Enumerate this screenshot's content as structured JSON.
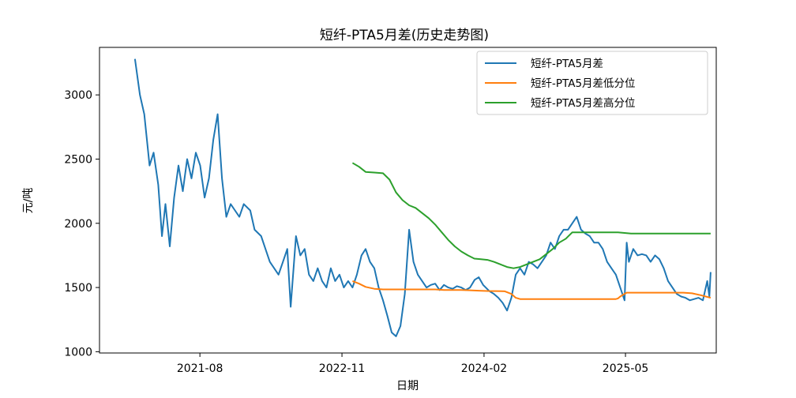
{
  "chart_data": {
    "type": "line",
    "title": "短纤-PTA5月差(历史走势图)",
    "xlabel": "日期",
    "ylabel": "元/吨",
    "x_ticks": [
      "2021-08",
      "2022-11",
      "2024-02",
      "2025-05"
    ],
    "x_tick_dates": [
      "2021-08-01",
      "2022-11-01",
      "2024-02-01",
      "2025-05-01"
    ],
    "xlim": [
      "2020-09-12",
      "2026-02-17"
    ],
    "ylim": [
      990,
      3370
    ],
    "y_ticks": [
      1000,
      1500,
      2000,
      2500,
      3000
    ],
    "grid": false,
    "legend_position": "top-right",
    "series": [
      {
        "name": "短纤-PTA5月差",
        "color": "#1f77b4",
        "x": [
          "2021-01-04",
          "2021-01-20",
          "2021-02-03",
          "2021-02-20",
          "2021-03-05",
          "2021-03-20",
          "2021-04-01",
          "2021-04-12",
          "2021-04-26",
          "2021-05-10",
          "2021-05-24",
          "2021-06-07",
          "2021-06-21",
          "2021-07-05",
          "2021-07-19",
          "2021-08-02",
          "2021-08-16",
          "2021-08-30",
          "2021-09-13",
          "2021-09-27",
          "2021-10-11",
          "2021-10-25",
          "2021-11-08",
          "2021-11-22",
          "2021-12-06",
          "2021-12-20",
          "2022-01-10",
          "2022-01-24",
          "2022-02-14",
          "2022-02-28",
          "2022-03-14",
          "2022-03-28",
          "2022-04-11",
          "2022-04-25",
          "2022-05-09",
          "2022-05-20",
          "2022-06-06",
          "2022-06-20",
          "2022-07-04",
          "2022-07-18",
          "2022-08-01",
          "2022-08-15",
          "2022-08-29",
          "2022-09-12",
          "2022-09-26",
          "2022-10-10",
          "2022-10-24",
          "2022-11-07",
          "2022-11-21",
          "2022-12-05",
          "2022-12-19",
          "2023-01-03",
          "2023-01-16",
          "2023-01-30",
          "2023-02-13",
          "2023-02-27",
          "2023-03-13",
          "2023-03-27",
          "2023-04-10",
          "2023-04-24",
          "2023-05-08",
          "2023-05-22",
          "2023-06-05",
          "2023-06-19",
          "2023-07-03",
          "2023-07-17",
          "2023-07-31",
          "2023-08-14",
          "2023-08-28",
          "2023-09-11",
          "2023-09-25",
          "2023-10-09",
          "2023-10-23",
          "2023-11-06",
          "2023-11-20",
          "2023-12-04",
          "2023-12-18",
          "2024-01-02",
          "2024-01-15",
          "2024-01-29",
          "2024-02-19",
          "2024-03-04",
          "2024-03-18",
          "2024-04-01",
          "2024-04-15",
          "2024-04-29",
          "2024-05-13",
          "2024-05-27",
          "2024-06-10",
          "2024-06-24",
          "2024-07-08",
          "2024-07-22",
          "2024-08-05",
          "2024-08-19",
          "2024-09-02",
          "2024-09-16",
          "2024-09-30",
          "2024-10-14",
          "2024-10-28",
          "2024-11-11",
          "2024-11-25",
          "2024-12-09",
          "2024-12-23",
          "2025-01-06",
          "2025-01-20",
          "2025-02-03",
          "2025-02-17",
          "2025-03-03",
          "2025-03-17",
          "2025-03-31",
          "2025-04-14",
          "2025-04-28",
          "2025-05-05",
          "2025-05-12",
          "2025-05-26",
          "2025-06-09",
          "2025-06-23",
          "2025-07-07",
          "2025-07-21",
          "2025-08-04",
          "2025-08-18",
          "2025-09-01",
          "2025-09-15",
          "2025-09-29",
          "2025-10-13",
          "2025-10-27",
          "2025-11-10",
          "2025-11-24",
          "2025-12-08",
          "2025-12-22",
          "2026-01-05",
          "2026-01-19",
          "2026-01-26",
          "2026-01-30"
        ],
        "y": [
          3280,
          3000,
          2850,
          2450,
          2550,
          2300,
          1900,
          2150,
          1820,
          2200,
          2450,
          2250,
          2500,
          2350,
          2550,
          2450,
          2200,
          2350,
          2650,
          2850,
          2350,
          2050,
          2150,
          2100,
          2050,
          2150,
          2100,
          1950,
          1900,
          1800,
          1700,
          1650,
          1600,
          1700,
          1800,
          1350,
          1900,
          1750,
          1800,
          1600,
          1550,
          1650,
          1550,
          1500,
          1650,
          1550,
          1600,
          1500,
          1550,
          1500,
          1600,
          1750,
          1800,
          1700,
          1650,
          1500,
          1400,
          1280,
          1150,
          1120,
          1200,
          1450,
          1950,
          1700,
          1600,
          1550,
          1500,
          1520,
          1530,
          1480,
          1520,
          1500,
          1490,
          1510,
          1500,
          1480,
          1500,
          1560,
          1580,
          1520,
          1470,
          1450,
          1420,
          1380,
          1320,
          1420,
          1600,
          1650,
          1600,
          1700,
          1680,
          1650,
          1700,
          1750,
          1850,
          1800,
          1900,
          1950,
          1950,
          2000,
          2050,
          1950,
          1920,
          1900,
          1850,
          1850,
          1800,
          1700,
          1650,
          1600,
          1500,
          1400,
          1850,
          1700,
          1800,
          1750,
          1760,
          1750,
          1700,
          1750,
          1720,
          1650,
          1550,
          1500,
          1450,
          1430,
          1420,
          1400,
          1410,
          1420,
          1400,
          1550,
          1430,
          1620
        ]
      },
      {
        "name": "短纤-PTA5月差低分位",
        "color": "#ff7f0e",
        "x": [
          "2022-12-05",
          "2022-12-26",
          "2023-01-16",
          "2023-02-13",
          "2023-03-13",
          "2023-04-10",
          "2023-05-08",
          "2023-06-05",
          "2023-07-03",
          "2023-07-31",
          "2023-08-28",
          "2023-09-25",
          "2023-10-23",
          "2023-11-20",
          "2023-12-18",
          "2024-01-15",
          "2024-02-12",
          "2024-03-11",
          "2024-04-08",
          "2024-04-29",
          "2024-05-13",
          "2024-05-27",
          "2024-06-24",
          "2024-07-22",
          "2024-08-19",
          "2024-09-16",
          "2024-10-14",
          "2024-11-11",
          "2024-12-09",
          "2025-01-06",
          "2025-02-03",
          "2025-03-03",
          "2025-03-31",
          "2025-04-07",
          "2025-04-14",
          "2025-04-21",
          "2025-05-05",
          "2025-06-02",
          "2025-07-07",
          "2025-08-04",
          "2025-09-01",
          "2025-10-06",
          "2025-11-03",
          "2025-12-01",
          "2025-12-29",
          "2026-01-30"
        ],
        "y": [
          1550,
          1530,
          1505,
          1490,
          1485,
          1485,
          1485,
          1485,
          1485,
          1485,
          1485,
          1480,
          1480,
          1480,
          1478,
          1475,
          1473,
          1472,
          1470,
          1450,
          1420,
          1410,
          1410,
          1410,
          1410,
          1410,
          1410,
          1410,
          1410,
          1410,
          1410,
          1410,
          1410,
          1415,
          1430,
          1440,
          1460,
          1460,
          1460,
          1460,
          1460,
          1460,
          1460,
          1455,
          1440,
          1420
        ]
      },
      {
        "name": "短纤-PTA5月差高分位",
        "color": "#2ca02c",
        "x": [
          "2022-12-05",
          "2022-12-26",
          "2023-01-16",
          "2023-02-13",
          "2023-03-13",
          "2023-04-03",
          "2023-04-24",
          "2023-05-15",
          "2023-06-05",
          "2023-06-26",
          "2023-07-17",
          "2023-08-07",
          "2023-08-28",
          "2023-09-18",
          "2023-10-09",
          "2023-10-30",
          "2023-11-20",
          "2023-12-11",
          "2024-01-01",
          "2024-01-22",
          "2024-02-12",
          "2024-03-04",
          "2024-03-25",
          "2024-04-15",
          "2024-05-06",
          "2024-05-27",
          "2024-06-17",
          "2024-07-08",
          "2024-07-29",
          "2024-08-19",
          "2024-09-09",
          "2024-09-30",
          "2024-10-21",
          "2024-11-11",
          "2024-12-02",
          "2024-12-23",
          "2025-01-13",
          "2025-02-03",
          "2025-02-24",
          "2025-03-17",
          "2025-04-07",
          "2025-04-28",
          "2025-05-19",
          "2025-06-30",
          "2025-08-11",
          "2025-09-22",
          "2025-11-03",
          "2025-12-15",
          "2026-01-30"
        ],
        "y": [
          2470,
          2440,
          2400,
          2395,
          2390,
          2340,
          2240,
          2180,
          2140,
          2120,
          2080,
          2040,
          1990,
          1930,
          1870,
          1820,
          1780,
          1750,
          1725,
          1720,
          1715,
          1700,
          1680,
          1660,
          1650,
          1660,
          1680,
          1700,
          1720,
          1760,
          1800,
          1850,
          1880,
          1930,
          1930,
          1930,
          1930,
          1930,
          1930,
          1930,
          1930,
          1925,
          1920,
          1920,
          1920,
          1920,
          1920,
          1920,
          1920
        ]
      }
    ]
  }
}
